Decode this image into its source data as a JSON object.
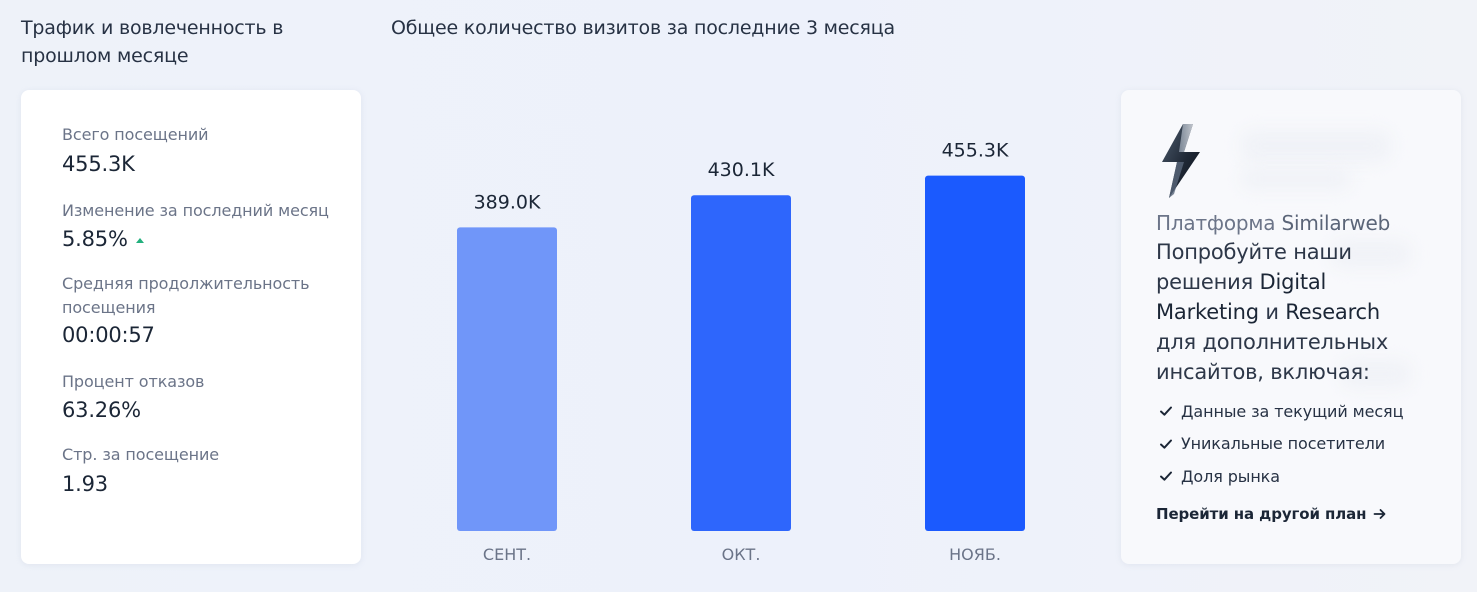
{
  "left_panel": {
    "title": "Трафик и вовлеченность в прошлом месяце",
    "metrics": [
      {
        "label": "Всего посещений",
        "value": "455.3K"
      },
      {
        "label": "Изменение за последний месяц",
        "value": "5.85%",
        "trend": "up"
      },
      {
        "label": "Средняя продолжительность посещения",
        "value": "00:00:57"
      },
      {
        "label": "Процент отказов",
        "value": "63.26%"
      },
      {
        "label": "Стр. за посещение",
        "value": "1.93"
      }
    ]
  },
  "chart_title": "Общее количество визитов за последние 3 месяца",
  "chart_data": {
    "type": "bar",
    "title": "Общее количество визитов за последние 3 месяца",
    "categories": [
      "СЕНТ.",
      "ОКТ.",
      "НОЯБ."
    ],
    "values": [
      389.0,
      430.1,
      455.3
    ],
    "value_labels": [
      "389.0K",
      "430.1K",
      "455.3K"
    ],
    "colors": [
      "#7096f9",
      "#2e66fc",
      "#1b5afe"
    ],
    "grid": false,
    "legend": "none"
  },
  "upgrade_card": {
    "icon": "lightning-bolt-icon",
    "platform_prefix": "Платформа ",
    "platform_brand": "Similarweb",
    "pitch_1": "Попробуйте наши решения ",
    "pitch_2": "Digital Marketing",
    "pitch_3": " и ",
    "pitch_4": "Research",
    "pitch_5": " для дополнительных инсайтов, включая:",
    "features": [
      "Данные за текущий месяц",
      "Уникальные посетители",
      "Доля рынка"
    ],
    "cta": "Перейти на другой план"
  },
  "colors": {
    "background": "#eef2f9",
    "card": "#ffffff",
    "text": "#1b2636",
    "trend_up": "#22b07d"
  }
}
